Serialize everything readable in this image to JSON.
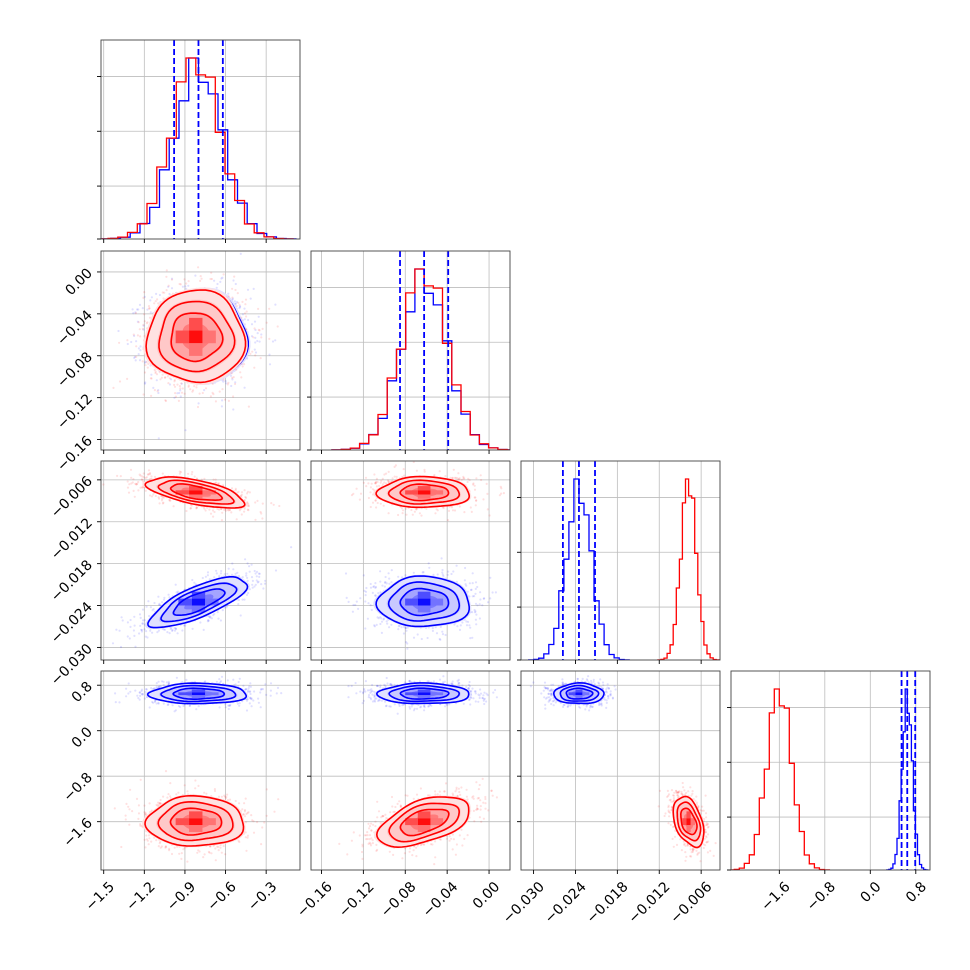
{
  "chart_data": {
    "type": "corner",
    "grid": true,
    "colors": {
      "blue": "#0000ff",
      "red": "#ff0000"
    },
    "params": [
      {
        "ticks": [
          "−1.5",
          "−1.2",
          "−0.9",
          "−0.6",
          "−0.3"
        ],
        "tick_values": [
          -1.5,
          -1.2,
          -0.9,
          -0.6,
          -0.3
        ],
        "range": [
          -1.52,
          -0.05
        ]
      },
      {
        "ticks": [
          "−0.16",
          "−0.12",
          "−0.08",
          "−0.04",
          "0.00"
        ],
        "tick_values": [
          -0.16,
          -0.12,
          -0.08,
          -0.04,
          0.0
        ],
        "range": [
          -0.17,
          0.02
        ]
      },
      {
        "ticks": [
          "−0.030",
          "−0.024",
          "−0.018",
          "−0.012",
          "−0.006"
        ],
        "tick_values": [
          -0.03,
          -0.024,
          -0.018,
          -0.012,
          -0.006
        ],
        "range": [
          -0.0318,
          -0.0033
        ]
      },
      {
        "ticks": [
          "−1.6",
          "−0.8",
          "0.0",
          "0.8"
        ],
        "tick_values": [
          -1.6,
          -0.8,
          0.0,
          0.8
        ],
        "range": [
          -2.45,
          1.05
        ]
      }
    ],
    "series": [
      {
        "name": "",
        "color": "#0000ff",
        "mean": [
          -0.8,
          -0.062,
          -0.0235,
          0.65
        ],
        "std": [
          0.18,
          0.022,
          0.0018,
          0.09
        ],
        "correlations": {
          "0-2": 0.75
        },
        "quantile_lines": [
          [
            -0.98,
            -0.8,
            -0.62
          ],
          [
            -0.085,
            -0.062,
            -0.039
          ],
          [
            -0.0258,
            -0.0235,
            -0.0212
          ],
          [
            0.55,
            0.65,
            0.79
          ]
        ]
      },
      {
        "name": "",
        "color": "#ff0000",
        "mean": [
          -0.82,
          -0.062,
          -0.0078,
          -1.6
        ],
        "std": [
          0.18,
          0.022,
          0.0011,
          0.22
        ],
        "correlations": {
          "0-2": -0.6,
          "1-3": 0.5,
          "2-3": -0.4
        }
      }
    ]
  }
}
